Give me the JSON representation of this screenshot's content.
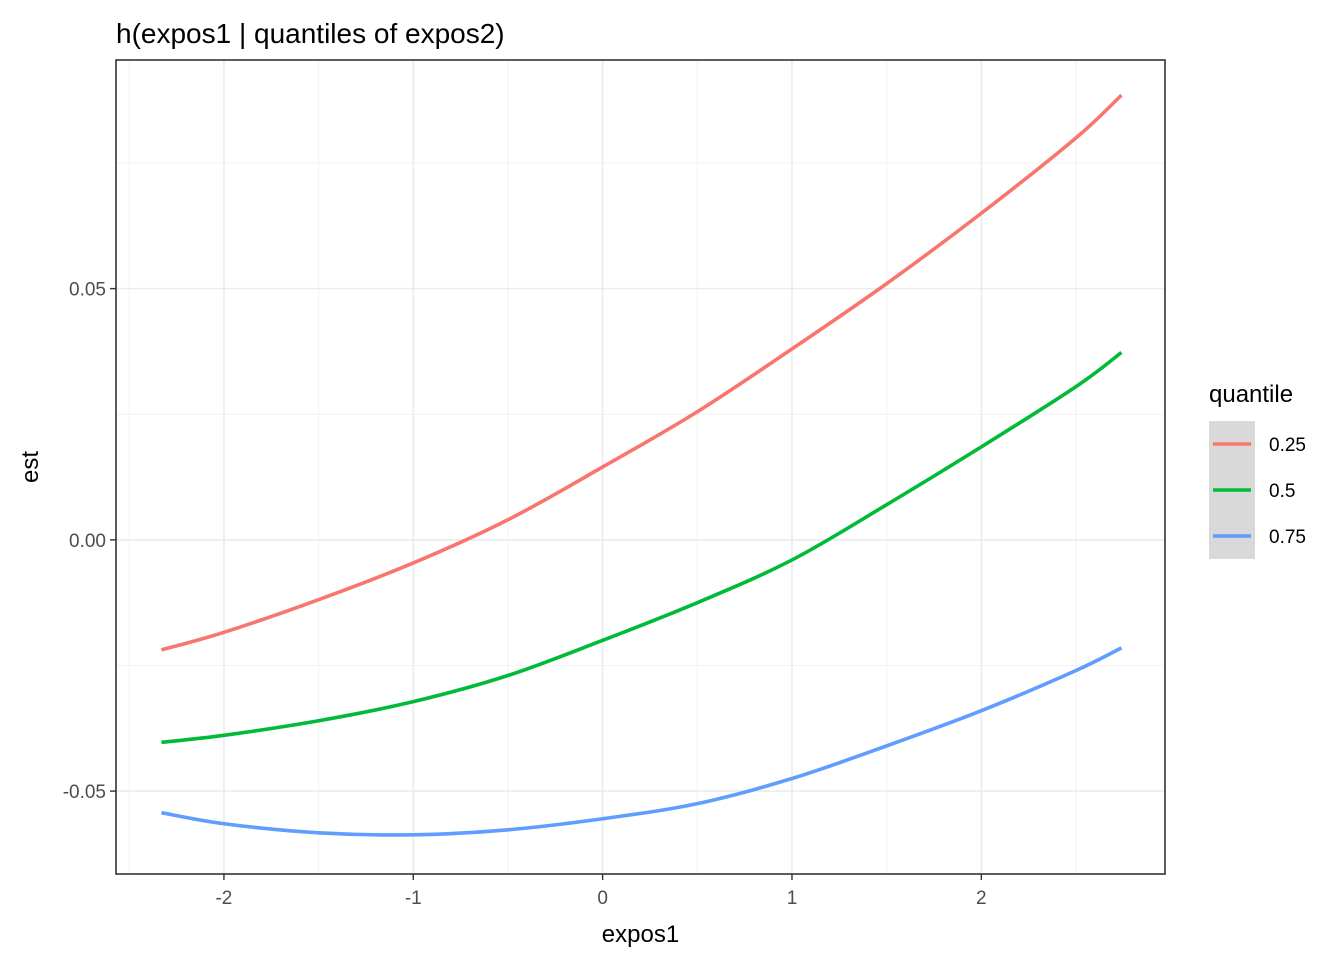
{
  "chart_data": {
    "type": "line",
    "title": "h(expos1 | quantiles of expos2)",
    "xlabel": "expos1",
    "ylabel": "est",
    "xlim": [
      -2.57,
      2.97
    ],
    "ylim": [
      -0.0665,
      0.0955
    ],
    "x_ticks": [
      -2,
      -1,
      0,
      1,
      2
    ],
    "x_tick_labels": [
      "-2",
      "-1",
      "0",
      "1",
      "2"
    ],
    "y_ticks": [
      -0.05,
      0.0,
      0.05
    ],
    "y_tick_labels": [
      "-0.05",
      "0.00",
      "0.05"
    ],
    "grid": true,
    "legend": {
      "title": "quantile",
      "position": "right"
    },
    "x": [
      -2.33,
      -2.0,
      -1.5,
      -1.0,
      -0.5,
      0.0,
      0.5,
      1.0,
      1.5,
      2.0,
      2.5,
      2.74
    ],
    "series": [
      {
        "name": "0.25",
        "color": "#F8766D",
        "values": [
          -0.0219,
          -0.0184,
          -0.0119,
          -0.0046,
          0.004,
          0.0145,
          0.0255,
          0.038,
          0.051,
          0.065,
          0.08,
          0.0885
        ]
      },
      {
        "name": "0.5",
        "color": "#00BA38",
        "values": [
          -0.0403,
          -0.0389,
          -0.036,
          -0.0322,
          -0.027,
          -0.02,
          -0.0125,
          -0.004,
          0.007,
          0.0185,
          0.0305,
          0.0373
        ]
      },
      {
        "name": "0.75",
        "color": "#619CFF",
        "values": [
          -0.0543,
          -0.0565,
          -0.0583,
          -0.0587,
          -0.0577,
          -0.0555,
          -0.0525,
          -0.0475,
          -0.041,
          -0.034,
          -0.026,
          -0.0215
        ]
      }
    ]
  }
}
